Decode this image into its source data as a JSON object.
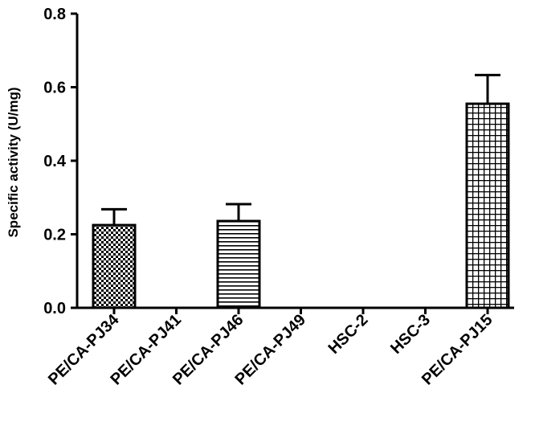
{
  "chart_data": {
    "type": "bar",
    "title": "",
    "xlabel": "",
    "ylabel": "Specific activity (U/mg)",
    "ylim": [
      0,
      0.8
    ],
    "yticks": [
      "0.0",
      "0.2",
      "0.4",
      "0.6",
      "0.8"
    ],
    "ytick_values": [
      0,
      0.2,
      0.4,
      0.6,
      0.8
    ],
    "categories": [
      "PE/CA-PJ34",
      "PE/CA-PJ41",
      "PE/CA-PJ46",
      "PE/CA-PJ49",
      "HSC-2",
      "HSC-3",
      "PE/CA-PJ15"
    ],
    "values": [
      0.225,
      0,
      0.236,
      0,
      0,
      0,
      0.555
    ],
    "error": [
      0.043,
      0,
      0.046,
      0,
      0,
      0,
      0.078
    ],
    "patterns": [
      "fine-checker",
      "none",
      "horizontal-lines",
      "none",
      "none",
      "none",
      "grid"
    ],
    "grid": false,
    "legend": "none",
    "colors": {
      "bar_stroke": "#000000",
      "pattern": "#000000",
      "background": "#ffffff"
    }
  }
}
